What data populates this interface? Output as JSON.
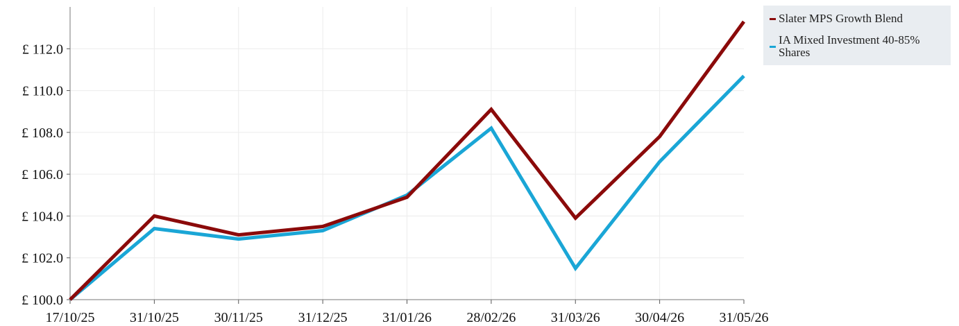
{
  "chart_data": {
    "type": "line",
    "title": "",
    "xlabel": "",
    "ylabel": "",
    "x": [
      "17/10/25",
      "31/10/25",
      "30/11/25",
      "31/12/25",
      "31/01/26",
      "28/02/26",
      "31/03/26",
      "30/04/26",
      "31/05/26"
    ],
    "ylim": [
      100.0,
      114.0
    ],
    "yticks": [
      100.0,
      102.0,
      104.0,
      106.0,
      108.0,
      110.0,
      112.0
    ],
    "ytick_labels": [
      "£ 100.0",
      "£ 102.0",
      "£ 104.0",
      "£ 106.0",
      "£ 108.0",
      "£ 110.0",
      "£ 112.0"
    ],
    "grid": true,
    "legend_position": "top-right, outside plot",
    "series": [
      {
        "name": "Slater MPS Growth Blend",
        "color": "#8b0a0a",
        "values": [
          100.0,
          104.0,
          103.1,
          103.5,
          104.9,
          109.1,
          103.9,
          107.8,
          113.3
        ]
      },
      {
        "name": "IA Mixed Investment 40-85% Shares",
        "color": "#1aa6d6",
        "values": [
          100.0,
          103.4,
          102.9,
          103.3,
          105.0,
          108.2,
          101.5,
          106.6,
          110.7
        ]
      }
    ]
  }
}
